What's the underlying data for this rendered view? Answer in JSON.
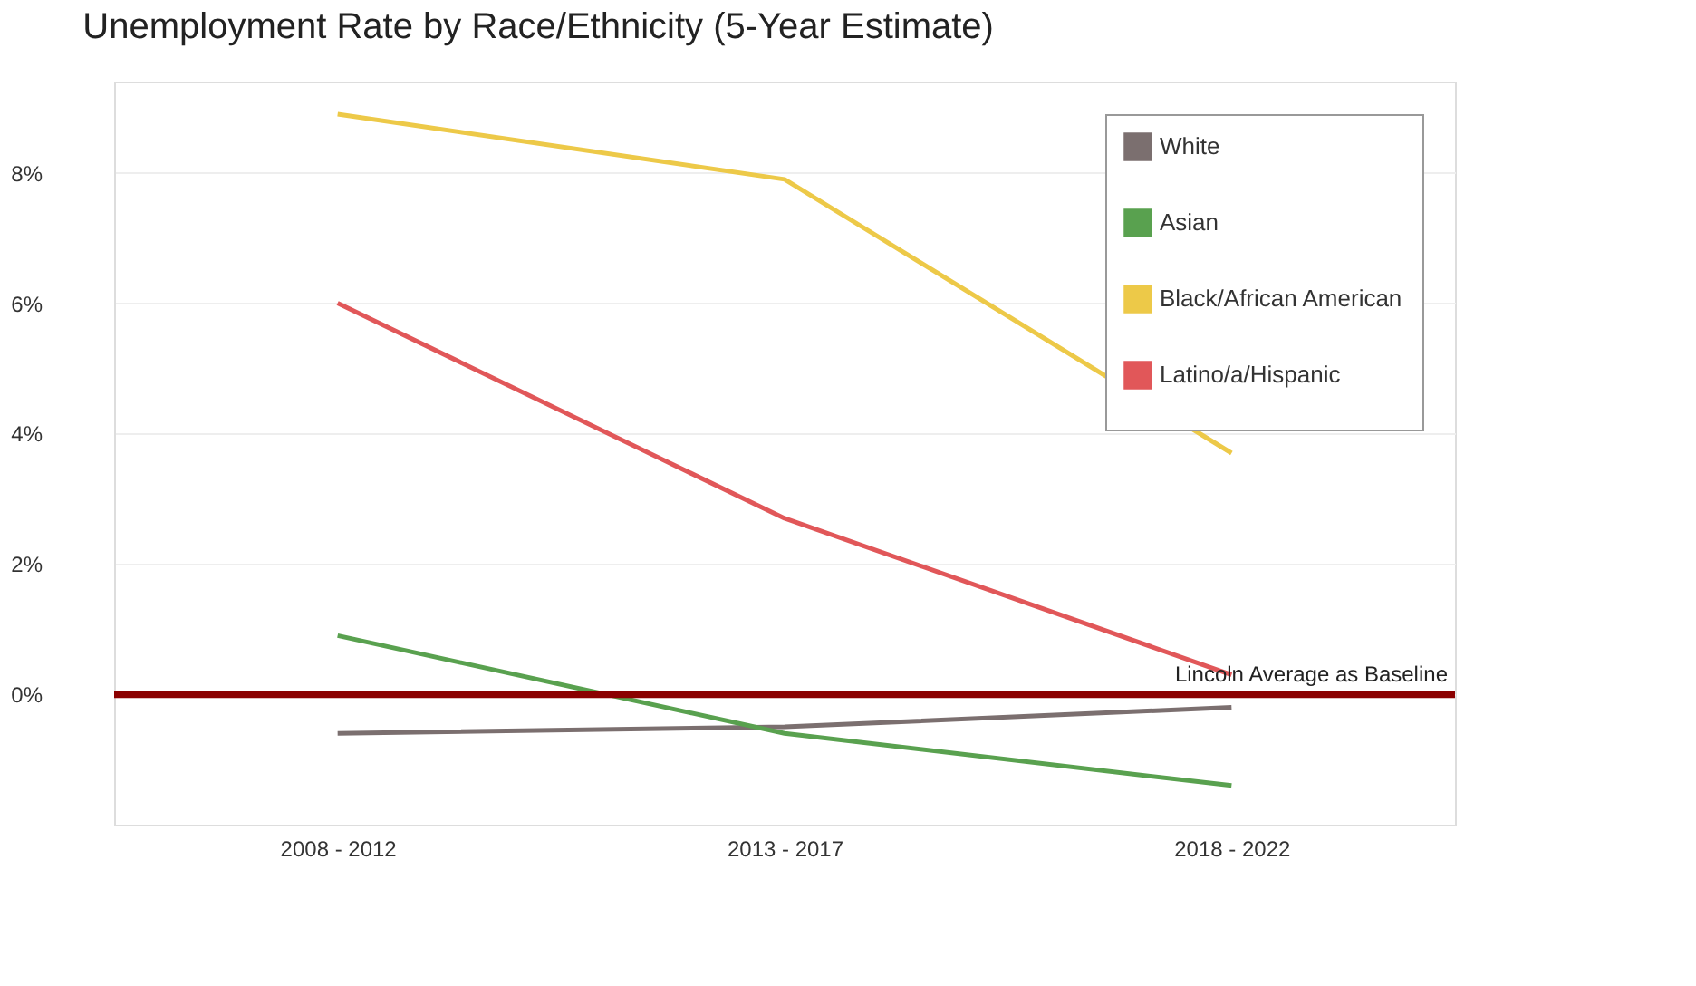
{
  "chart_data": {
    "type": "line",
    "title": "Unemployment Rate by Race/Ethnicity (5-Year Estimate)",
    "categories": [
      "2008 - 2012",
      "2013 - 2017",
      "2018 - 2022"
    ],
    "series": [
      {
        "name": "White",
        "color": "#7b6f6f",
        "values": [
          -0.6,
          -0.5,
          -0.2
        ]
      },
      {
        "name": "Asian",
        "color": "#59a14f",
        "values": [
          0.9,
          -0.6,
          -1.4
        ]
      },
      {
        "name": "Black/African American",
        "color": "#edc948",
        "values": [
          8.9,
          7.9,
          3.7
        ]
      },
      {
        "name": "Latino/a/Hispanic",
        "color": "#e15759",
        "values": [
          6.0,
          2.7,
          0.3
        ]
      }
    ],
    "ylim": [
      -2.0,
      9.4
    ],
    "yticks": [
      {
        "value": 0,
        "label": "0%"
      },
      {
        "value": 2,
        "label": "2%"
      },
      {
        "value": 4,
        "label": "4%"
      },
      {
        "value": 6,
        "label": "6%"
      },
      {
        "value": 8,
        "label": "8%"
      }
    ],
    "grid": "y",
    "legend": "top right",
    "marker": "none",
    "line_style": "solid",
    "ref_lines": [
      {
        "axis": "y",
        "value": 0,
        "label": "Lincoln Average as Baseline",
        "color": "#8b0000",
        "line_style": "solid"
      }
    ]
  }
}
